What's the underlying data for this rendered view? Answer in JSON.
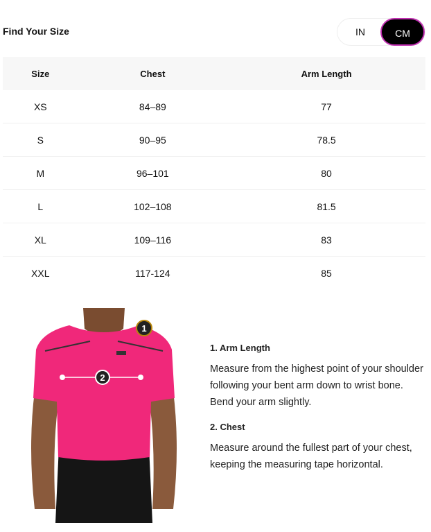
{
  "header": {
    "title": "Find Your Size"
  },
  "unit_toggle": {
    "options": [
      "IN",
      "CM"
    ],
    "selected": "CM",
    "accent": "#c02fb0"
  },
  "table": {
    "columns": [
      "Size",
      "Chest",
      "Arm Length"
    ],
    "rows": [
      [
        "XS",
        "84–89",
        "77"
      ],
      [
        "S",
        "90–95",
        "78.5"
      ],
      [
        "M",
        "96–101",
        "80"
      ],
      [
        "L",
        "102–108",
        "81.5"
      ],
      [
        "XL",
        "109–116",
        "83"
      ],
      [
        "XXL",
        "117-124",
        "85"
      ]
    ]
  },
  "figure": {
    "markers": [
      "1",
      "2"
    ],
    "shirt_color": "#f0287a"
  },
  "instructions": [
    {
      "heading": "1. Arm Length",
      "text": "Measure from the highest point of your shoulder following your bent arm down to wrist bone. Bend your arm slightly."
    },
    {
      "heading": "2. Chest",
      "text": "Measure around the fullest part of your chest, keeping the measuring tape horizontal."
    }
  ]
}
